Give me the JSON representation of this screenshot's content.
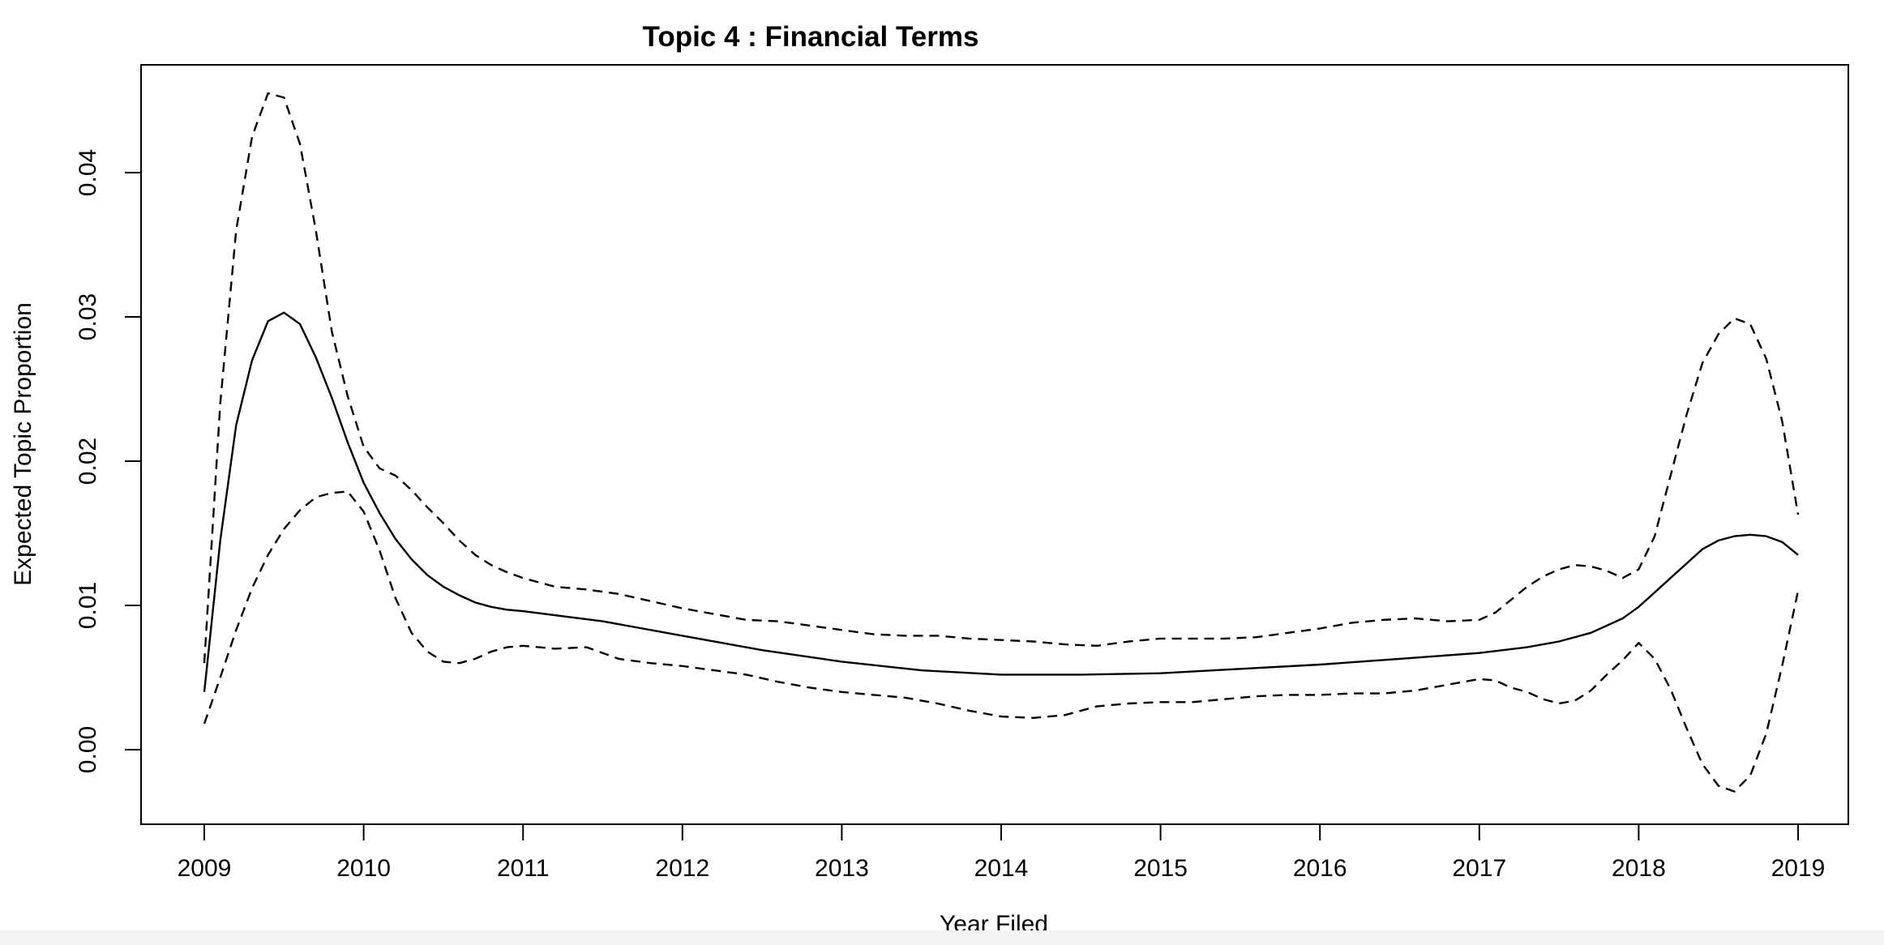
{
  "chart_data": {
    "type": "line",
    "title": "Topic 4 : Financial Terms",
    "xlabel": "Year Filed",
    "ylabel": "Expected Topic Proportion",
    "xlim": [
      2009,
      2019
    ],
    "ylim": [
      -0.0045,
      0.0475
    ],
    "x_ticks": [
      2009,
      2010,
      2011,
      2012,
      2013,
      2014,
      2015,
      2016,
      2017,
      2018,
      2019
    ],
    "x_tick_labels": [
      "2009",
      "2010",
      "2011",
      "2012",
      "2013",
      "2014",
      "2015",
      "2016",
      "2017",
      "2018",
      "2019"
    ],
    "y_ticks": [
      0.0,
      0.01,
      0.02,
      0.03,
      0.04
    ],
    "y_tick_labels": [
      "0.00",
      "0.01",
      "0.02",
      "0.03",
      "0.04"
    ],
    "grid": false,
    "legend": "none",
    "line_color": "#000000",
    "series": [
      {
        "style": "solid",
        "x": [
          2009.0,
          2009.1,
          2009.2,
          2009.3,
          2009.4,
          2009.5,
          2009.6,
          2009.7,
          2009.8,
          2009.9,
          2010.0,
          2010.1,
          2010.2,
          2010.3,
          2010.4,
          2010.5,
          2010.6,
          2010.7,
          2010.8,
          2010.9,
          2011.0,
          2011.5,
          2012.0,
          2012.5,
          2013.0,
          2013.5,
          2014.0,
          2014.5,
          2015.0,
          2015.5,
          2016.0,
          2016.5,
          2017.0,
          2017.3,
          2017.5,
          2017.7,
          2017.9,
          2018.0,
          2018.2,
          2018.4,
          2018.5,
          2018.6,
          2018.7,
          2018.8,
          2018.9,
          2019.0
        ],
        "values": [
          0.004,
          0.0145,
          0.0225,
          0.027,
          0.0297,
          0.0303,
          0.0295,
          0.0272,
          0.0244,
          0.0213,
          0.0185,
          0.0164,
          0.0146,
          0.0132,
          0.0121,
          0.0113,
          0.0107,
          0.0102,
          0.0099,
          0.0097,
          0.0096,
          0.0089,
          0.0079,
          0.0069,
          0.0061,
          0.0055,
          0.0052,
          0.0052,
          0.0053,
          0.0056,
          0.0059,
          0.0063,
          0.0067,
          0.0071,
          0.0075,
          0.0081,
          0.0091,
          0.0099,
          0.0119,
          0.0139,
          0.0145,
          0.0148,
          0.0149,
          0.0148,
          0.0144,
          0.0135
        ]
      },
      {
        "style": "dashed",
        "x": [
          2009.0,
          2009.1,
          2009.2,
          2009.3,
          2009.4,
          2009.5,
          2009.6,
          2009.7,
          2009.8,
          2009.9,
          2010.0,
          2010.1,
          2010.2,
          2010.3,
          2010.4,
          2010.5,
          2010.6,
          2010.7,
          2010.8,
          2010.9,
          2011.0,
          2011.2,
          2011.4,
          2011.6,
          2011.8,
          2012.0,
          2012.2,
          2012.4,
          2012.6,
          2012.8,
          2013.0,
          2013.2,
          2013.4,
          2013.6,
          2013.8,
          2014.0,
          2014.2,
          2014.4,
          2014.6,
          2014.8,
          2015.0,
          2015.2,
          2015.4,
          2015.6,
          2015.8,
          2016.0,
          2016.2,
          2016.4,
          2016.6,
          2016.8,
          2017.0,
          2017.1,
          2017.2,
          2017.3,
          2017.4,
          2017.5,
          2017.6,
          2017.7,
          2017.8,
          2017.9,
          2018.0,
          2018.1,
          2018.2,
          2018.3,
          2018.4,
          2018.5,
          2018.6,
          2018.7,
          2018.8,
          2018.9,
          2019.0
        ],
        "values": [
          0.006,
          0.024,
          0.036,
          0.0425,
          0.0455,
          0.0452,
          0.042,
          0.036,
          0.029,
          0.0245,
          0.021,
          0.0195,
          0.019,
          0.018,
          0.0168,
          0.0157,
          0.0145,
          0.0135,
          0.0128,
          0.0123,
          0.0119,
          0.0113,
          0.0111,
          0.0108,
          0.0103,
          0.0098,
          0.0094,
          0.009,
          0.0089,
          0.0086,
          0.0083,
          0.008,
          0.0079,
          0.0079,
          0.0077,
          0.0076,
          0.0075,
          0.0073,
          0.0072,
          0.0075,
          0.0077,
          0.0077,
          0.0077,
          0.0078,
          0.0081,
          0.0084,
          0.0088,
          0.009,
          0.0091,
          0.0089,
          0.009,
          0.0095,
          0.0104,
          0.0113,
          0.012,
          0.0125,
          0.0128,
          0.0127,
          0.0124,
          0.0119,
          0.0125,
          0.0148,
          0.019,
          0.0232,
          0.0268,
          0.0288,
          0.0299,
          0.0295,
          0.0271,
          0.0228,
          0.0163
        ]
      },
      {
        "style": "dashed",
        "x": [
          2009.0,
          2009.1,
          2009.2,
          2009.3,
          2009.4,
          2009.5,
          2009.6,
          2009.7,
          2009.8,
          2009.9,
          2010.0,
          2010.1,
          2010.2,
          2010.3,
          2010.4,
          2010.5,
          2010.6,
          2010.7,
          2010.8,
          2010.9,
          2011.0,
          2011.2,
          2011.4,
          2011.6,
          2011.8,
          2012.0,
          2012.2,
          2012.4,
          2012.6,
          2012.8,
          2013.0,
          2013.2,
          2013.4,
          2013.6,
          2013.8,
          2014.0,
          2014.2,
          2014.4,
          2014.6,
          2014.8,
          2015.0,
          2015.2,
          2015.4,
          2015.6,
          2015.8,
          2016.0,
          2016.2,
          2016.4,
          2016.6,
          2016.8,
          2017.0,
          2017.1,
          2017.2,
          2017.3,
          2017.4,
          2017.5,
          2017.6,
          2017.7,
          2017.8,
          2017.9,
          2018.0,
          2018.1,
          2018.2,
          2018.3,
          2018.4,
          2018.5,
          2018.6,
          2018.7,
          2018.8,
          2018.9,
          2019.0
        ],
        "values": [
          0.0018,
          0.005,
          0.0083,
          0.0112,
          0.0135,
          0.0153,
          0.0166,
          0.0175,
          0.0178,
          0.0179,
          0.0165,
          0.0138,
          0.0105,
          0.0081,
          0.0068,
          0.0061,
          0.006,
          0.0063,
          0.0068,
          0.0071,
          0.0072,
          0.007,
          0.0071,
          0.0063,
          0.006,
          0.0058,
          0.0055,
          0.0052,
          0.0047,
          0.0043,
          0.004,
          0.0038,
          0.0036,
          0.0032,
          0.0027,
          0.0023,
          0.0022,
          0.0024,
          0.003,
          0.0032,
          0.0033,
          0.0033,
          0.0035,
          0.0037,
          0.0038,
          0.0038,
          0.0039,
          0.0039,
          0.0041,
          0.0045,
          0.0049,
          0.0048,
          0.0043,
          0.004,
          0.0035,
          0.0032,
          0.0034,
          0.0041,
          0.0052,
          0.0062,
          0.0074,
          0.0063,
          0.0042,
          0.0015,
          -0.001,
          -0.0025,
          -0.0029,
          -0.0018,
          0.0011,
          0.0058,
          0.011
        ]
      }
    ]
  }
}
